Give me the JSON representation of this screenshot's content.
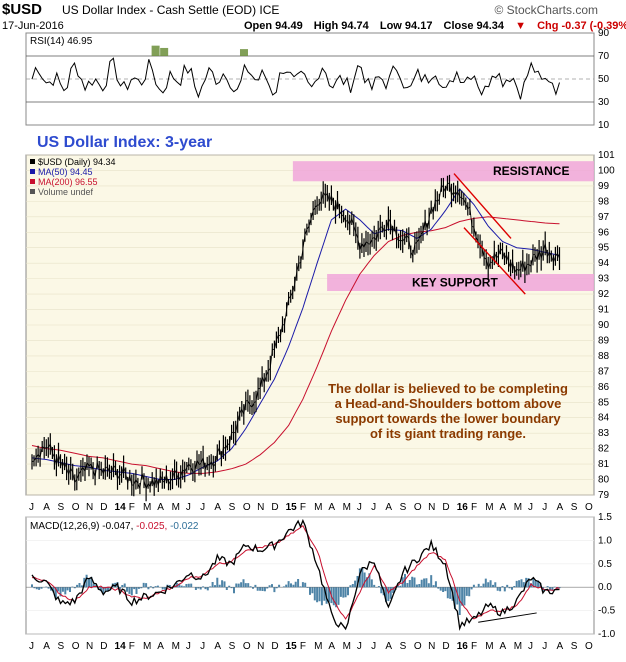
{
  "header": {
    "symbol": "$USD",
    "description": "US Dollar Index - Cash Settle (EOD)",
    "exchange": "ICE",
    "brand": "© StockCharts.com",
    "date": "17-Jun-2016",
    "open": "Open 94.49",
    "high": "High 94.74",
    "low": "Low 94.17",
    "close": "Close 94.34",
    "change": "Chg -0.37 (-0.39%)",
    "change_arrow": "▼"
  },
  "colors": {
    "price": "#000000",
    "ma50": "#1a1aa8",
    "ma200": "#c8102e",
    "band": "#f0a6d9",
    "panel_bg": "#fbf8e6",
    "annotation": "#8b3a00",
    "chart_title": "#2e4bcf",
    "rsi_fill": "#6b8e3a",
    "histogram": "#2f6f98"
  },
  "chart_data": [
    {
      "panel": "rsi",
      "type": "line",
      "legend": "RSI(14) 46.95",
      "ylim": [
        10,
        90
      ],
      "yticks": [
        10,
        30,
        50,
        70,
        90
      ],
      "overbought": 70,
      "oversold": 30,
      "last_value": 46.95
    },
    {
      "panel": "price",
      "type": "line",
      "title": "US Dollar Index: 3-year",
      "legend": [
        {
          "name": "$USD (Daily) 94.34"
        },
        {
          "name": "MA(50) 94.45"
        },
        {
          "name": "MA(200) 96.55"
        },
        {
          "name": "Volume undef"
        }
      ],
      "ylim": [
        79,
        101
      ],
      "yticks": [
        79,
        80,
        81,
        82,
        83,
        84,
        85,
        86,
        87,
        88,
        89,
        90,
        91,
        92,
        93,
        94,
        95,
        96,
        97,
        98,
        99,
        100,
        101
      ],
      "series": [
        {
          "name": "$USD (Daily)",
          "x": [
            0,
            1,
            2,
            3,
            4,
            5,
            6,
            7,
            8,
            9,
            10,
            11,
            12,
            13,
            14,
            15,
            16,
            17,
            18,
            19,
            20,
            21,
            22,
            23,
            24,
            25,
            26,
            27,
            28,
            29,
            30,
            31,
            32,
            33,
            34,
            35,
            36,
            37
          ],
          "values": [
            81.6,
            82.2,
            81.0,
            79.9,
            80.7,
            80.5,
            80.5,
            80.0,
            79.9,
            79.8,
            80.2,
            81.0,
            81.0,
            81.5,
            82.8,
            84.6,
            85.8,
            88.3,
            91.2,
            95.0,
            98.2,
            98.0,
            97.2,
            95.3,
            95.6,
            96.9,
            95.5,
            94.8,
            97.5,
            99.0,
            98.8,
            96.5,
            94.1,
            94.6,
            93.5,
            94.1,
            95.0,
            94.3
          ]
        },
        {
          "name": "MA(50)",
          "x": [
            0,
            1,
            2,
            3,
            4,
            5,
            6,
            7,
            8,
            9,
            10,
            11,
            12,
            13,
            14,
            15,
            16,
            17,
            18,
            19,
            20,
            21,
            22,
            23,
            24,
            25,
            26,
            27,
            28,
            29,
            30,
            31,
            32,
            33,
            34,
            35,
            36,
            37
          ],
          "values": [
            81.4,
            81.3,
            81.1,
            80.9,
            80.8,
            80.6,
            80.5,
            80.4,
            80.2,
            80.0,
            80.0,
            80.3,
            80.8,
            81.2,
            82.0,
            83.3,
            84.9,
            86.5,
            88.6,
            91.1,
            94.0,
            96.8,
            97.5,
            96.8,
            95.9,
            96.2,
            96.1,
            95.6,
            96.2,
            97.4,
            98.8,
            97.8,
            96.4,
            95.4,
            95.0,
            94.9,
            94.7,
            94.5
          ]
        },
        {
          "name": "MA(200)",
          "x": [
            0,
            1,
            2,
            3,
            4,
            5,
            6,
            7,
            8,
            9,
            10,
            11,
            12,
            13,
            14,
            15,
            16,
            17,
            18,
            19,
            20,
            21,
            22,
            23,
            24,
            25,
            26,
            27,
            28,
            29,
            30,
            31,
            32,
            33,
            34,
            35,
            36,
            37
          ],
          "values": [
            82.2,
            82.0,
            81.9,
            81.7,
            81.5,
            81.4,
            81.2,
            81.0,
            80.9,
            80.7,
            80.5,
            80.4,
            80.4,
            80.5,
            80.7,
            81.0,
            81.6,
            82.4,
            83.5,
            85.2,
            87.3,
            89.6,
            91.6,
            93.3,
            94.5,
            95.4,
            95.8,
            96.0,
            96.1,
            96.3,
            96.7,
            96.9,
            97.0,
            96.9,
            96.8,
            96.7,
            96.6,
            96.55
          ]
        }
      ],
      "annotations": {
        "resistance_label": "RESISTANCE",
        "support_label": "KEY SUPPORT",
        "resistance_band": [
          99.3,
          100.6
        ],
        "support_band": [
          92.2,
          93.3
        ],
        "note_lines": [
          "The dollar is believed to be completing",
          "a Head-and-Shoulders bottom above",
          "support towards the lower boundary",
          "of its giant trading range."
        ]
      }
    },
    {
      "panel": "macd",
      "type": "line",
      "legend": {
        "label": "MACD(12,26,9)",
        "macd": "-0.047",
        "signal": "-0.025",
        "hist": "-0.022"
      },
      "ylim": [
        -1.0,
        1.5
      ],
      "yticks": [
        "1.5",
        "1.0",
        "0.5",
        "0.0",
        "-0.5",
        "-1.0"
      ],
      "series": [
        {
          "name": "MACD",
          "x": [
            0,
            1,
            2,
            3,
            4,
            5,
            6,
            7,
            8,
            9,
            10,
            11,
            12,
            13,
            14,
            15,
            16,
            17,
            18,
            19,
            20,
            21,
            22,
            23,
            24,
            25,
            26,
            27,
            28,
            29,
            30,
            31,
            32,
            33,
            34,
            35,
            36,
            37
          ],
          "values": [
            0.25,
            0.1,
            -0.35,
            -0.3,
            0.2,
            -0.1,
            0.0,
            -0.3,
            -0.2,
            -0.1,
            0.05,
            0.3,
            0.2,
            0.6,
            0.5,
            0.9,
            0.8,
            0.9,
            1.2,
            1.4,
            0.5,
            -0.6,
            -0.95,
            0.3,
            0.6,
            -0.5,
            0.3,
            0.6,
            0.9,
            0.5,
            -0.8,
            -0.7,
            -0.4,
            -0.55,
            -0.3,
            0.2,
            -0.1,
            -0.05
          ]
        },
        {
          "name": "Signal",
          "x": [
            0,
            1,
            2,
            3,
            4,
            5,
            6,
            7,
            8,
            9,
            10,
            11,
            12,
            13,
            14,
            15,
            16,
            17,
            18,
            19,
            20,
            21,
            22,
            23,
            24,
            25,
            26,
            27,
            28,
            29,
            30,
            31,
            32,
            33,
            34,
            35,
            36,
            37
          ],
          "values": [
            0.2,
            0.15,
            -0.15,
            -0.3,
            0.0,
            0.0,
            -0.05,
            -0.2,
            -0.25,
            -0.1,
            0.0,
            0.2,
            0.25,
            0.5,
            0.55,
            0.8,
            0.85,
            0.9,
            1.1,
            1.3,
            0.8,
            -0.2,
            -0.7,
            -0.1,
            0.45,
            -0.1,
            0.1,
            0.45,
            0.75,
            0.6,
            -0.3,
            -0.7,
            -0.5,
            -0.5,
            -0.4,
            0.05,
            -0.05,
            -0.03
          ]
        }
      ]
    }
  ],
  "x_axis": {
    "labels": [
      "J",
      "A",
      "S",
      "O",
      "N",
      "D",
      "14",
      "F",
      "M",
      "A",
      "M",
      "J",
      "J",
      "A",
      "S",
      "O",
      "N",
      "D",
      "15",
      "F",
      "M",
      "A",
      "M",
      "J",
      "J",
      "A",
      "S",
      "O",
      "N",
      "D",
      "16",
      "F",
      "M",
      "A",
      "M",
      "J",
      "J",
      "A",
      "S",
      "O"
    ],
    "bold": [
      "14",
      "15",
      "16"
    ]
  }
}
